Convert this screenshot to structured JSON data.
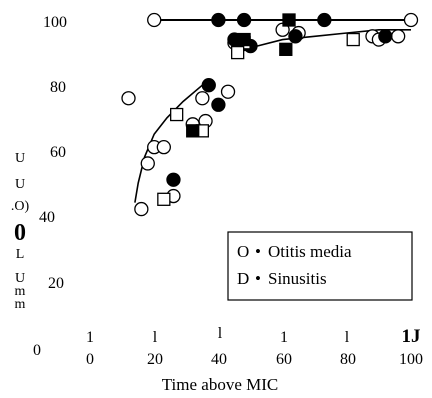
{
  "chart_data": {
    "type": "scatter",
    "title": "",
    "xlabel": "Time above MIC",
    "ylabel_fragments": [
      "U",
      "U",
      ".O)",
      "0",
      "L",
      "U",
      "m",
      "m"
    ],
    "x_tick_labels": [
      "0",
      "20",
      "40",
      "60",
      "80",
      "100"
    ],
    "x_tick_marks_upper": [
      "1",
      "l",
      "l",
      "1",
      "l",
      "1J"
    ],
    "y_tick_labels": [
      "0",
      "20",
      "40",
      "60",
      "80",
      "100"
    ],
    "xlim": [
      0,
      100
    ],
    "ylim": [
      0,
      100
    ],
    "grid": false,
    "legend_position": "lower-right",
    "legend": [
      {
        "symbol": "O",
        "bullet": "•",
        "label": "Otitis media"
      },
      {
        "symbol": "D",
        "bullet": "•",
        "label": "Sinusitis"
      }
    ],
    "series": [
      {
        "name": "Otitis media",
        "marker": "circle",
        "open_points": [
          [
            20,
            100
          ],
          [
            100,
            100
          ],
          [
            60,
            97
          ],
          [
            65,
            96
          ],
          [
            88,
            95
          ],
          [
            90,
            94
          ],
          [
            96,
            95
          ],
          [
            45,
            93
          ],
          [
            16,
            42
          ],
          [
            18,
            56
          ],
          [
            20,
            61
          ],
          [
            23,
            61
          ],
          [
            26,
            46
          ],
          [
            32,
            68
          ],
          [
            36,
            69
          ],
          [
            43,
            78
          ],
          [
            35,
            76
          ],
          [
            12,
            76
          ]
        ],
        "filled_points": [
          [
            40,
            100
          ],
          [
            48,
            100
          ],
          [
            73,
            100
          ],
          [
            45,
            94
          ],
          [
            64,
            95
          ],
          [
            50,
            92
          ],
          [
            92,
            95
          ],
          [
            26,
            51
          ],
          [
            37,
            80
          ],
          [
            40,
            74
          ]
        ]
      },
      {
        "name": "Sinusitis",
        "marker": "square",
        "open_points": [
          [
            48,
            93
          ],
          [
            82,
            94
          ],
          [
            27,
            71
          ],
          [
            35,
            66
          ],
          [
            23,
            45
          ],
          [
            46,
            90
          ]
        ],
        "filled_points": [
          [
            62,
            100
          ],
          [
            48,
            94
          ],
          [
            32,
            66
          ],
          [
            61,
            91
          ]
        ]
      }
    ],
    "fit_curves": [
      {
        "points": [
          [
            46,
            90
          ],
          [
            52,
            92
          ],
          [
            60,
            94
          ],
          [
            70,
            95
          ],
          [
            80,
            96
          ],
          [
            90,
            97
          ],
          [
            100,
            97
          ]
        ]
      },
      {
        "points": [
          [
            14,
            44
          ],
          [
            15,
            50
          ],
          [
            17,
            58
          ],
          [
            20,
            65
          ],
          [
            24,
            70
          ],
          [
            29,
            75
          ],
          [
            35,
            80
          ]
        ]
      }
    ],
    "reference_line_y": 100
  }
}
